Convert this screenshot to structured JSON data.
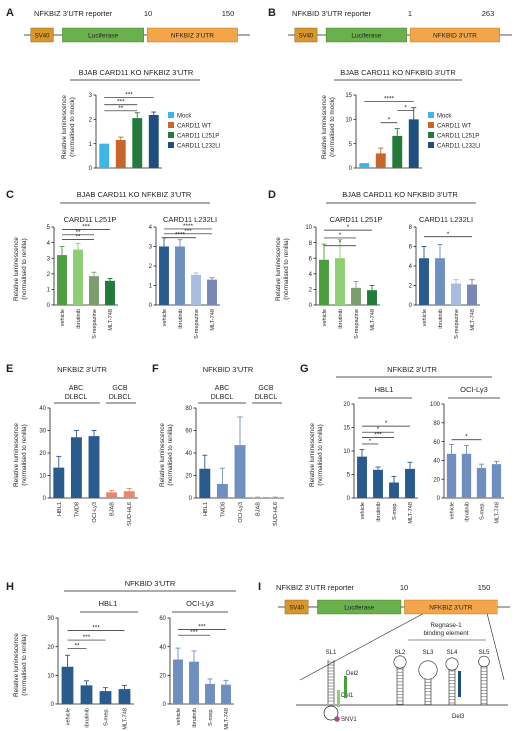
{
  "colors": {
    "sv40": "#d9962b",
    "luciferase": "#6ab04c",
    "utr": "#f2a649",
    "mock": "#3fb5e5",
    "wt": "#c8652a",
    "l251p": "#237a3b",
    "l232li": "#1e4f7e",
    "green_dark": "#4a9e3e",
    "green_mid": "#8fcf73",
    "green_light": "#b7dfa3",
    "green_dim": "#7a9e6e",
    "blue_dark": "#2a5b8f",
    "blue_mid": "#6f8fc0",
    "blue_light": "#a9bce0",
    "blue_dim": "#7987b6",
    "salmon": "#e8876a",
    "sig": "#b14a8b"
  },
  "panels": {
    "A": {
      "letter": "A",
      "title": "NFKBIZ 3'UTR reporter",
      "n1": "10",
      "n2": "150",
      "chart_title": "BJAB CARD11 KO NFKBIZ 3'UTR"
    },
    "B": {
      "letter": "B",
      "title": "NFKBID 3'UTR reporter",
      "n1": "1",
      "n2": "263",
      "chart_title": "BJAB CARD11 KO NFKBID 3'UTR"
    },
    "C": {
      "letter": "C",
      "title": "BJAB CARD11 KO NFKBIZ 3'UTR",
      "sub1": "CARD11 L251P",
      "sub2": "CARD11 L232LI"
    },
    "D": {
      "letter": "D",
      "title": "BJAB CARD11 KO NFKBID 3'UTR",
      "sub1": "CARD11 L251P",
      "sub2": "CARD11 L232LI"
    },
    "E": {
      "letter": "E",
      "title": "NFKBIZ 3'UTR",
      "g1a": "ABC",
      "g1b": "DLBCL",
      "g2a": "GCB",
      "g2b": "DLBCL"
    },
    "F": {
      "letter": "F",
      "title": "NFKBID 3'UTR",
      "g1a": "ABC",
      "g1b": "DLBCL",
      "g2a": "GCB",
      "g2b": "DLBCL"
    },
    "G": {
      "letter": "G",
      "title": "NFKBIZ 3'UTR",
      "sub1": "HBL1",
      "sub2": "OCI-Ly3"
    },
    "H": {
      "letter": "H",
      "title": "NFKBID 3'UTR",
      "sub1": "HBL1",
      "sub2": "OCI-Ly3"
    },
    "I": {
      "letter": "I",
      "title": "NFKBIZ 3'UTR reporter",
      "n1": "10",
      "n2": "150",
      "binding_line1": "Regnase-1",
      "binding_line2": "binding element",
      "sl": [
        "SL1",
        "SL2",
        "SL3",
        "SL4",
        "SL5"
      ],
      "del1": "Del1",
      "del2": "Del2",
      "del3": "Del3",
      "snv": "SNV1"
    }
  },
  "boxes": {
    "sv40": "SV40",
    "luciferase": "Luciferase",
    "utr_z": "NFKBIZ 3'UTR",
    "utr_d": "NFKBID 3'UTR"
  },
  "legend": [
    "Mock",
    "CARD11 WT",
    "CARD11 L251P",
    "CARD11 L232LI"
  ],
  "ylabels": {
    "mock1": "Relative luminescence",
    "mock2": "(normalised to mock)",
    "ren1": "Relative luminescence",
    "ren2": "(normalised to renilla)"
  },
  "chart_data": [
    {
      "panel": "A",
      "type": "bar",
      "categories": [
        "Mock",
        "CARD11 WT",
        "CARD11 L251P",
        "CARD11 L232LI"
      ],
      "values": [
        1.0,
        1.15,
        2.05,
        2.18
      ],
      "errors": [
        0,
        0.12,
        0.22,
        0.12
      ],
      "ylim": [
        0,
        3
      ],
      "yticks": [
        0,
        1,
        2,
        3
      ],
      "significance": [
        "**",
        "***",
        "***"
      ]
    },
    {
      "panel": "B",
      "type": "bar",
      "categories": [
        "Mock",
        "CARD11 WT",
        "CARD11 L251P",
        "CARD11 L232LI"
      ],
      "values": [
        1.0,
        3.0,
        6.6,
        10.0
      ],
      "errors": [
        0,
        1.1,
        1.5,
        2.4
      ],
      "ylim": [
        0,
        15
      ],
      "yticks": [
        0,
        5,
        10,
        15
      ],
      "significance": [
        "*",
        "*",
        "****"
      ]
    },
    {
      "panel": "C1",
      "type": "bar",
      "categories": [
        "vehicle",
        "ibrutinib",
        "S-mepazine",
        "MLT-748"
      ],
      "values": [
        3.2,
        3.55,
        1.85,
        1.55
      ],
      "errors": [
        0.55,
        0.4,
        0.25,
        0.15
      ],
      "ylim": [
        0,
        5
      ],
      "yticks": [
        0,
        1,
        2,
        3,
        4,
        5
      ],
      "significance": [
        "**",
        "**",
        "***"
      ]
    },
    {
      "panel": "C2",
      "type": "bar",
      "categories": [
        "vehicle",
        "ibrutinib",
        "S-mepazine",
        "MLT-748"
      ],
      "values": [
        3.0,
        3.0,
        1.55,
        1.3
      ],
      "errors": [
        0.45,
        0.35,
        0.1,
        0.1
      ],
      "ylim": [
        0,
        4
      ],
      "yticks": [
        0,
        1,
        2,
        3,
        4
      ],
      "significance": [
        "***",
        "****",
        "****"
      ]
    },
    {
      "panel": "D1",
      "type": "bar",
      "categories": [
        "vehicle",
        "ibrutinib",
        "S-mepazine",
        "MLT-748"
      ],
      "values": [
        5.8,
        6.0,
        2.2,
        1.9
      ],
      "errors": [
        2.0,
        2.4,
        0.8,
        0.6
      ],
      "ylim": [
        0,
        10
      ],
      "yticks": [
        0,
        2,
        4,
        6,
        8,
        10
      ],
      "significance": [
        "*",
        "*",
        "*"
      ]
    },
    {
      "panel": "D2",
      "type": "bar",
      "categories": [
        "vehicle",
        "ibrutinib",
        "S-mepazine",
        "MLT-748"
      ],
      "values": [
        4.8,
        4.8,
        2.2,
        2.1
      ],
      "errors": [
        1.2,
        1.4,
        0.4,
        0.5
      ],
      "ylim": [
        0,
        8
      ],
      "yticks": [
        0,
        2,
        4,
        6,
        8
      ],
      "significance": [
        "*"
      ]
    },
    {
      "panel": "E",
      "type": "bar",
      "categories": [
        "HBL1",
        "TMD8",
        "OCI-Ly3",
        "BJAB",
        "SUD-HL6"
      ],
      "values": [
        13.5,
        27.0,
        27.5,
        2.5,
        3.0
      ],
      "errors": [
        5.0,
        3.0,
        2.5,
        0.8,
        1.2
      ],
      "ylim": [
        0,
        40
      ],
      "yticks": [
        0,
        10,
        20,
        30,
        40
      ]
    },
    {
      "panel": "F",
      "type": "bar",
      "categories": [
        "HBL1",
        "TMD8",
        "OCI-Ly3",
        "BJAB",
        "SUD-HL6"
      ],
      "values": [
        26.0,
        12.5,
        47.0,
        0.5,
        0.5
      ],
      "errors": [
        12.0,
        14.0,
        25.0,
        0.3,
        0.3
      ],
      "ylim": [
        0,
        80
      ],
      "yticks": [
        0,
        20,
        40,
        60,
        80
      ]
    },
    {
      "panel": "G1",
      "type": "bar",
      "categories": [
        "vehicle",
        "ibrutinib",
        "S-mep.",
        "MLT-748"
      ],
      "values": [
        8.8,
        6.0,
        3.3,
        6.2
      ],
      "errors": [
        1.5,
        0.6,
        1.3,
        1.4
      ],
      "ylim": [
        0,
        20
      ],
      "yticks": [
        0,
        5,
        10,
        15,
        20
      ],
      "significance": [
        "*",
        "*",
        "***",
        "*"
      ]
    },
    {
      "panel": "G2",
      "type": "bar",
      "categories": [
        "vehicle",
        "ibrutinib",
        "S-mep.",
        "MLT-748"
      ],
      "values": [
        47.0,
        47.0,
        32.0,
        36.0
      ],
      "errors": [
        10.0,
        9.0,
        4.0,
        3.0
      ],
      "ylim": [
        0,
        100
      ],
      "yticks": [
        0,
        20,
        40,
        60,
        80,
        100
      ],
      "significance": [
        "*"
      ]
    },
    {
      "panel": "H1",
      "type": "bar",
      "categories": [
        "vehicle",
        "ibrutinib",
        "S-mep.",
        "MLT-748"
      ],
      "values": [
        13.0,
        6.5,
        4.5,
        5.2
      ],
      "errors": [
        4.0,
        1.6,
        1.2,
        1.3
      ],
      "ylim": [
        0,
        30
      ],
      "yticks": [
        0,
        10,
        20,
        30
      ],
      "significance": [
        "**",
        "***",
        "***"
      ]
    },
    {
      "panel": "H2",
      "type": "bar",
      "categories": [
        "vehicle",
        "ibrutinib",
        "S-mep.",
        "MLT-748"
      ],
      "values": [
        31.0,
        29.5,
        14.0,
        13.5
      ],
      "errors": [
        8.0,
        7.5,
        3.5,
        3.0
      ],
      "ylim": [
        0,
        60
      ],
      "yticks": [
        0,
        20,
        40,
        60
      ],
      "significance": [
        "***",
        "***"
      ]
    }
  ]
}
